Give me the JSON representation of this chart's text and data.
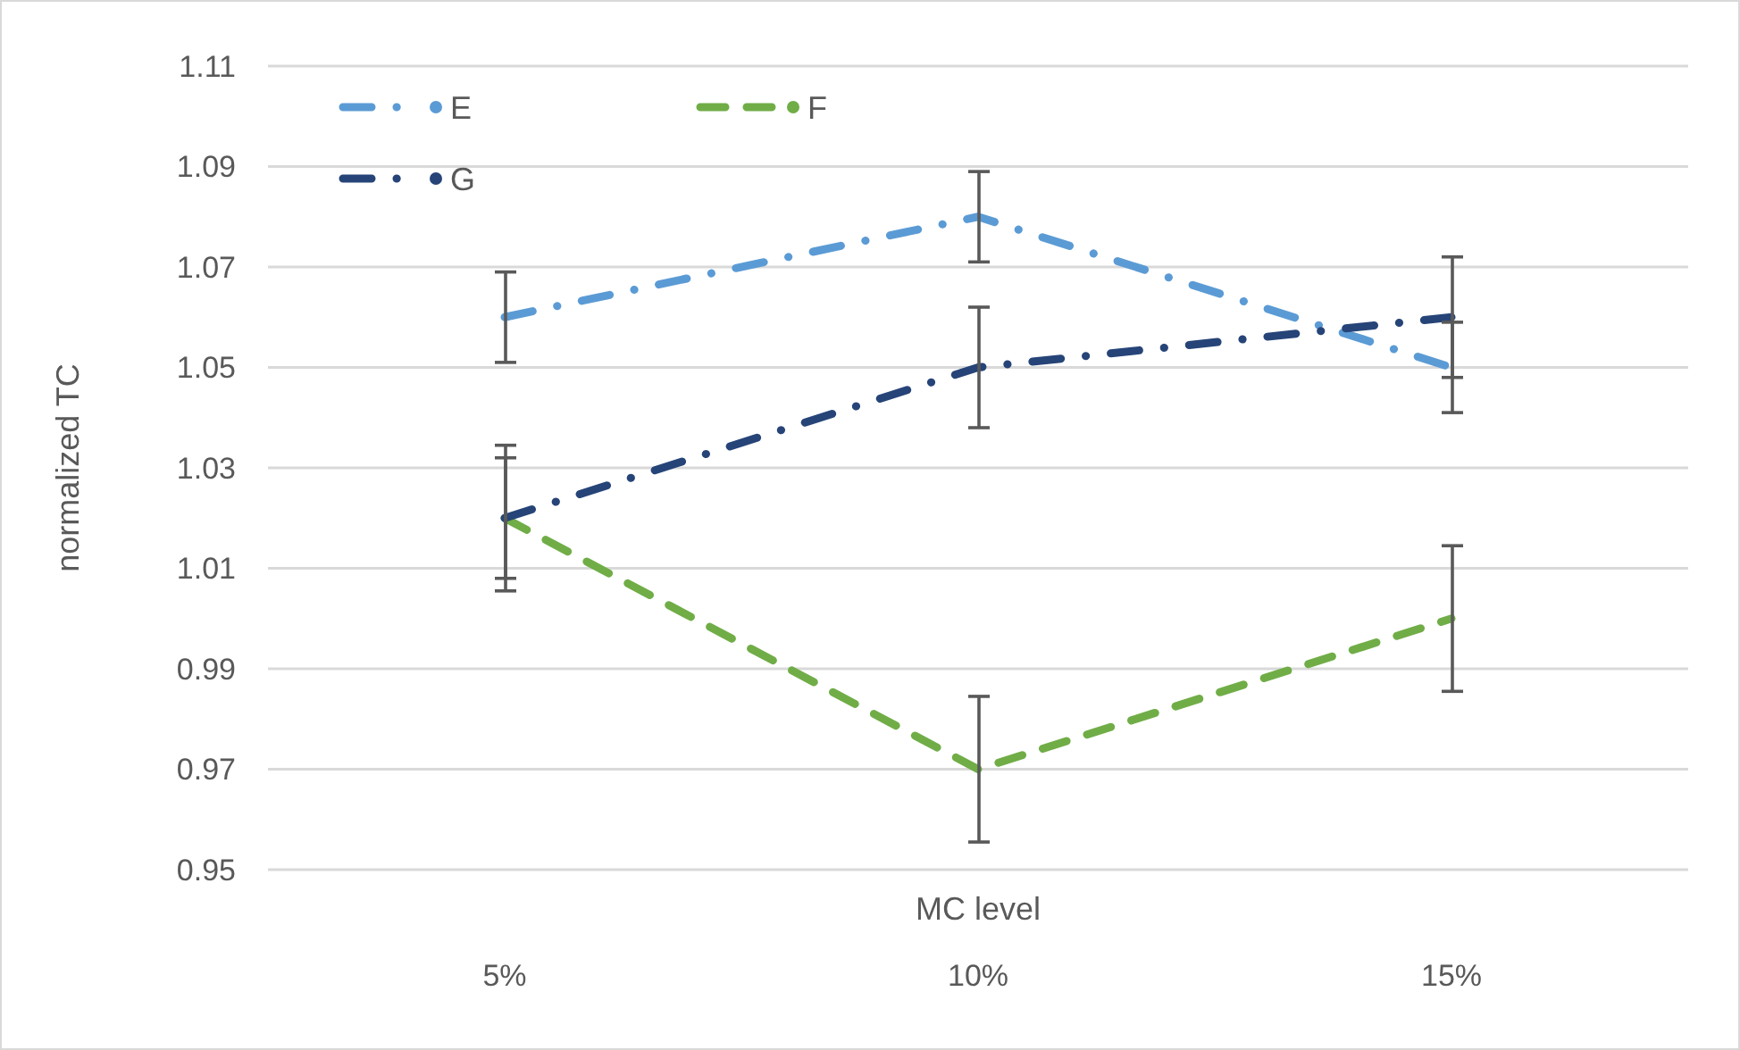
{
  "chart_data": {
    "type": "line",
    "xlabel": "MC level",
    "ylabel": "normalized TC",
    "categories": [
      "5%",
      "10%",
      "15%"
    ],
    "ylim": [
      0.95,
      1.11
    ],
    "yticks": [
      0.95,
      0.97,
      0.99,
      1.01,
      1.03,
      1.05,
      1.07,
      1.09,
      1.11
    ],
    "grid": "y",
    "legend": "top left",
    "marker": "none",
    "series": [
      {
        "name": "E",
        "color": "#5b9bd5",
        "values": [
          1.06,
          1.08,
          1.05
        ],
        "errors": [
          0.009,
          0.009,
          0.009
        ],
        "line_style": "dashdot"
      },
      {
        "name": "F",
        "color": "#70ad47",
        "values": [
          1.02,
          0.97,
          1.0
        ],
        "errors": [
          0.0145,
          0.0145,
          0.0145
        ],
        "line_style": "dashed"
      },
      {
        "name": "G",
        "color": "#264478",
        "values": [
          1.02,
          1.05,
          1.06
        ],
        "errors": [
          0.012,
          0.012,
          0.012
        ],
        "line_style": "dashdot"
      }
    ]
  }
}
